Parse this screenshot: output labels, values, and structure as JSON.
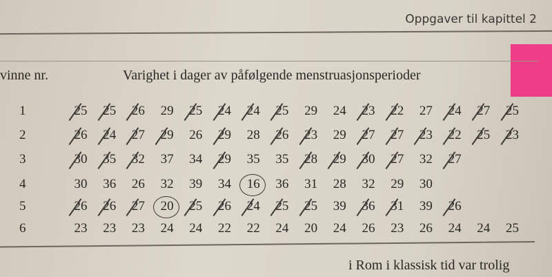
{
  "page_header": "Oppgaver til kapittel 2",
  "table": {
    "column_headers": [
      "vinne nr.",
      "Varighet i dager av påfølgende menstruasjonsperioder"
    ],
    "rows": [
      {
        "label": "1",
        "values": [
          "25",
          "25",
          "26",
          "29",
          "25",
          "24",
          "24",
          "25",
          "29",
          "24",
          "23",
          "22",
          "27",
          "24",
          "27",
          "25"
        ],
        "crossed": [
          0,
          1,
          2,
          4,
          5,
          6,
          7,
          10,
          11,
          13,
          14,
          15
        ]
      },
      {
        "label": "2",
        "values": [
          "26",
          "24",
          "27",
          "29",
          "26",
          "29",
          "28",
          "26",
          "23",
          "29",
          "27",
          "27",
          "23",
          "22",
          "25",
          "23"
        ],
        "crossed": [
          0,
          1,
          2,
          3,
          5,
          7,
          8,
          10,
          11,
          12,
          13,
          14,
          15
        ]
      },
      {
        "label": "3",
        "values": [
          "30",
          "35",
          "32",
          "37",
          "34",
          "29",
          "35",
          "35",
          "28",
          "29",
          "30",
          "27",
          "32",
          "27"
        ],
        "crossed": [
          0,
          1,
          2,
          5,
          8,
          9,
          10,
          11,
          13
        ]
      },
      {
        "label": "4",
        "values": [
          "30",
          "36",
          "26",
          "32",
          "39",
          "34",
          "16",
          "36",
          "31",
          "28",
          "32",
          "29",
          "30"
        ],
        "circled": [
          6
        ]
      },
      {
        "label": "5",
        "values": [
          "26",
          "26",
          "27",
          "20",
          "25",
          "26",
          "24",
          "25",
          "25",
          "39",
          "36",
          "31",
          "39",
          "26"
        ],
        "crossed": [
          0,
          1,
          2,
          4,
          5,
          6,
          7,
          8,
          10,
          11,
          13
        ],
        "circled": [
          3
        ]
      },
      {
        "label": "6",
        "values": [
          "23",
          "23",
          "23",
          "24",
          "24",
          "22",
          "22",
          "24",
          "20",
          "24",
          "26",
          "23",
          "26",
          "24",
          "24",
          "25"
        ]
      }
    ]
  },
  "footer_text": "i Rom i klassisk tid var trolig",
  "colors": {
    "sticky_note": "#ec3d86",
    "paper": "#d9d4c8"
  }
}
